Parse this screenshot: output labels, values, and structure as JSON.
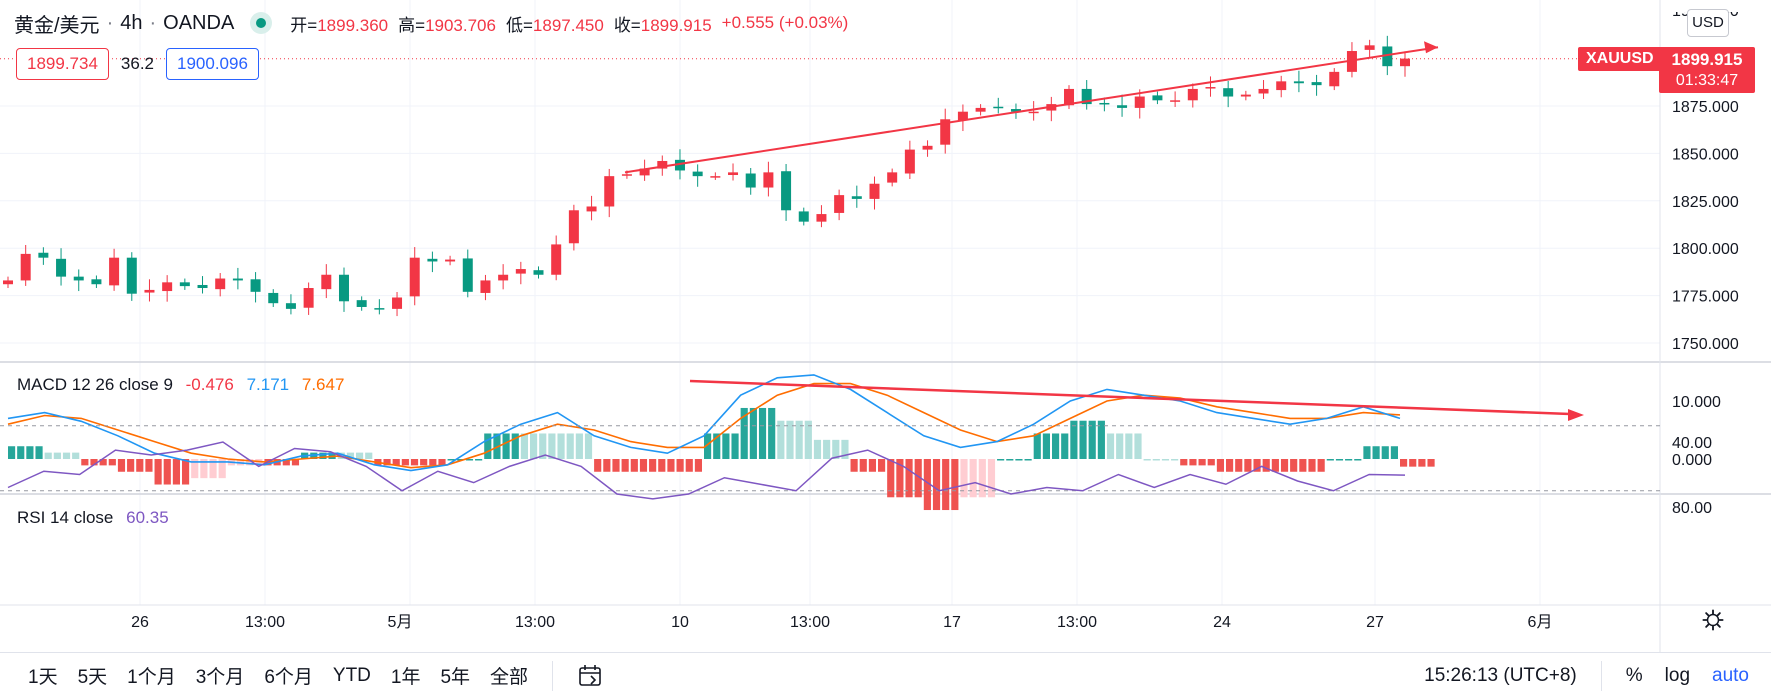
{
  "header": {
    "symbol_name": "黄金/美元",
    "interval": "4h",
    "broker": "OANDA",
    "open_label": "开=",
    "open": "1899.360",
    "high_label": "高=",
    "high": "1903.706",
    "low_label": "低=",
    "low": "1897.450",
    "close_label": "收=",
    "close": "1899.915",
    "change": "+0.555 (+0.03%)",
    "bid": "1899.734",
    "spread": "36.2",
    "ask": "1900.096"
  },
  "price_axis": {
    "currency": "USD",
    "symbol_tag": "XAUUSD",
    "last_price": "1899.915",
    "countdown": "01:33:47",
    "ticks": [
      "1875.000",
      "1850.000",
      "1825.000",
      "1800.000",
      "1775.000",
      "1750.000"
    ],
    "partial_top_tick": "1900.000"
  },
  "macd": {
    "label": "MACD 12 26 close 9",
    "hist": "-0.476",
    "macd": "7.171",
    "signal": "7.647",
    "ticks": [
      "10.000",
      "0.000"
    ]
  },
  "rsi": {
    "label": "RSI 14 close",
    "value": "60.35",
    "ticks": [
      "80.00",
      "40.00"
    ]
  },
  "time_axis": [
    "26",
    "13:00",
    "5月",
    "13:00",
    "10",
    "13:00",
    "17",
    "13:00",
    "24",
    "27",
    "6月"
  ],
  "bottom_bar": {
    "ranges": [
      "1天",
      "5天",
      "1个月",
      "3个月",
      "6个月",
      "YTD",
      "1年",
      "5年",
      "全部"
    ],
    "clock": "15:26:13 (UTC+8)",
    "options": [
      "%",
      "log",
      "auto"
    ]
  },
  "colors": {
    "up": "#f23645",
    "down": "#089981",
    "macd_line": "#2196f3",
    "signal_line": "#ff6d00",
    "rsi_line": "#7e57c2",
    "rsi_band": "#f3e5fc",
    "trendline": "#f23645"
  },
  "chart_data": {
    "type": "candlestick",
    "symbol": "XAUUSD",
    "interval": "4h",
    "price_ylim": [
      1740,
      1915
    ],
    "price_path": [
      1783,
      1797,
      1795,
      1785,
      1783,
      1781,
      1795,
      1776,
      1778,
      1782,
      1780,
      1779,
      1784,
      1783,
      1777,
      1771,
      1768,
      1779,
      1786,
      1772,
      1769,
      1768,
      1774,
      1795,
      1793,
      1794,
      1777,
      1783,
      1786,
      1789,
      1786,
      1802,
      1820,
      1822,
      1838,
      1839,
      1842,
      1846,
      1841,
      1838,
      1838,
      1840,
      1832,
      1840,
      1820,
      1814,
      1818,
      1828,
      1826,
      1834,
      1840,
      1852,
      1854,
      1868,
      1872,
      1874,
      1874,
      1872,
      1872,
      1876,
      1884,
      1876,
      1876,
      1874,
      1880,
      1878,
      1878,
      1884,
      1885,
      1880,
      1881,
      1884,
      1888,
      1887,
      1886,
      1893,
      1904,
      1907,
      1896,
      1900
    ],
    "trendline_price": {
      "from": [
        1840,
        1897
      ],
      "to": [
        1906,
        1914
      ],
      "units": "price"
    },
    "macd_ylim": [
      -4,
      16
    ],
    "macd_line": [
      7,
      8,
      6.5,
      4,
      1,
      -0.5,
      -0.5,
      -1,
      0.5,
      1,
      -1,
      -2,
      -1,
      3,
      6,
      8,
      4,
      2,
      1,
      4,
      11,
      14,
      14.5,
      12,
      8,
      4,
      2,
      3,
      6,
      10,
      12,
      11,
      10,
      8,
      7,
      6,
      7,
      9,
      7
    ],
    "signal_line": [
      6,
      7.5,
      7,
      5,
      3,
      1,
      0,
      -0.5,
      0,
      0.5,
      -0.5,
      -1.5,
      -1,
      1,
      4,
      6,
      5,
      3,
      2,
      2,
      7,
      11,
      13,
      13,
      11,
      8,
      5,
      3,
      4,
      7,
      10,
      11,
      10.5,
      9,
      8,
      7,
      7,
      8,
      7.6
    ],
    "rsi_ylim": [
      25,
      90
    ],
    "rsi_band": [
      30,
      70
    ],
    "rsi_values": [
      68,
      58,
      60,
      45,
      48,
      45,
      40,
      55,
      44,
      46,
      55,
      70,
      58,
      65,
      55,
      48,
      55,
      72,
      75,
      72,
      62,
      66,
      70,
      50,
      45,
      55,
      70,
      65,
      72,
      68,
      70,
      60,
      68,
      60,
      66,
      55,
      64,
      70,
      60,
      60.35
    ]
  }
}
